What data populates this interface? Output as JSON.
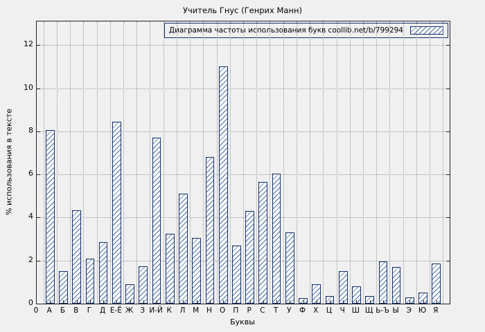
{
  "chart_data": {
    "type": "bar",
    "title": "Учитель Гнус (Генрих Манн)",
    "xlabel": "Буквы",
    "ylabel": "% использования в тексте",
    "legend_label": "Диаграмма частоты использования букв coollib.net/b/799294",
    "legend_position": "top-right",
    "grid": true,
    "x_origin_label": "0",
    "categories": [
      "А",
      "Б",
      "В",
      "Г",
      "Д",
      "Е-Ё",
      "Ж",
      "З",
      "И-Й",
      "К",
      "Л",
      "М",
      "Н",
      "О",
      "П",
      "Р",
      "С",
      "Т",
      "У",
      "Ф",
      "Х",
      "Ц",
      "Ч",
      "Ш",
      "Щ",
      "Ь-Ъ",
      "Ы",
      "Э",
      "Ю",
      "Я"
    ],
    "values": [
      8.05,
      1.5,
      4.35,
      2.1,
      2.85,
      8.45,
      0.9,
      1.75,
      7.7,
      3.25,
      5.1,
      3.05,
      6.8,
      11.0,
      2.7,
      4.3,
      5.65,
      6.05,
      3.3,
      0.25,
      0.9,
      0.35,
      1.5,
      0.8,
      0.35,
      1.95,
      1.7,
      0.3,
      0.5,
      1.85
    ],
    "yticks": [
      0,
      2,
      4,
      6,
      8,
      10,
      12
    ],
    "ylim": [
      0,
      13.1
    ],
    "colors": {
      "bar_border": "#14306a",
      "hatch": "#4a6fa8",
      "grid": "#9a9a9a",
      "background": "#f0f0f0"
    }
  }
}
